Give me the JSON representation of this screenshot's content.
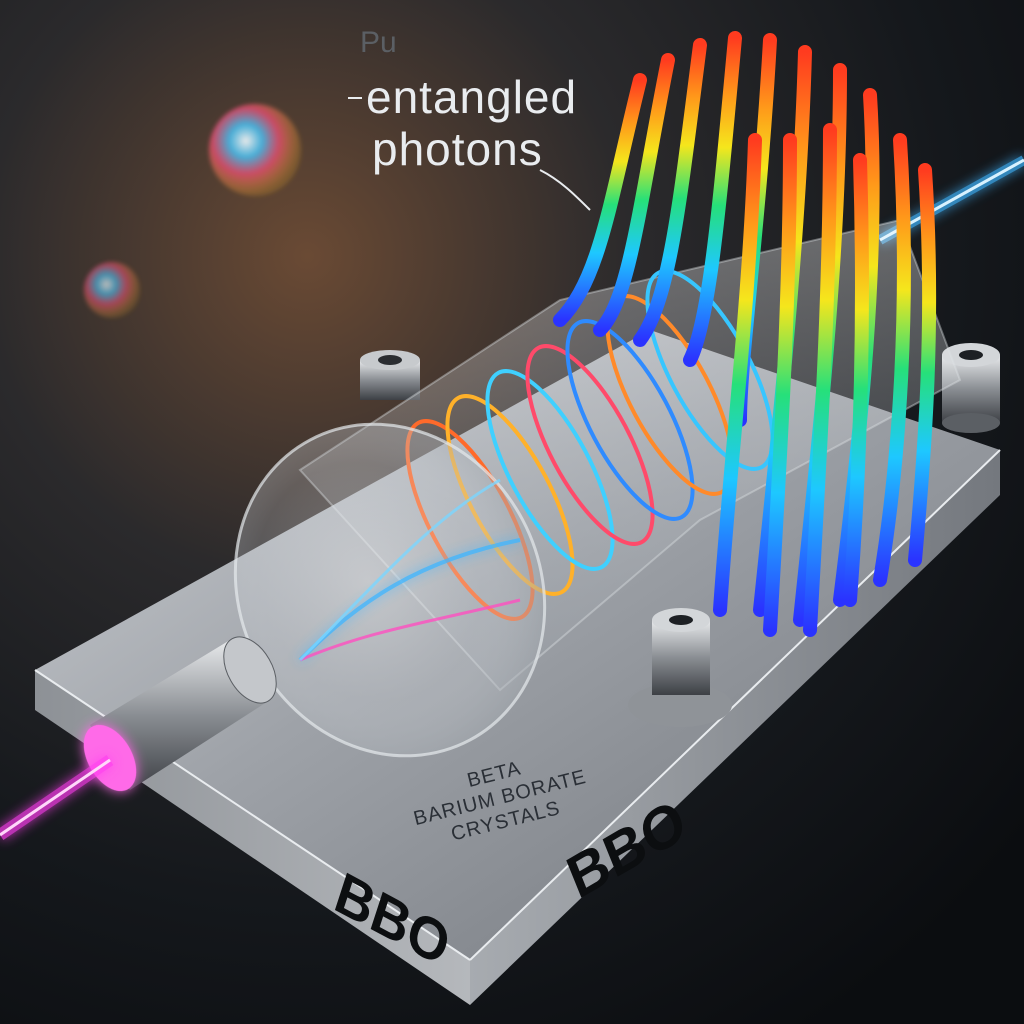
{
  "labels": {
    "pu": "Pu",
    "callout_line1": "entangled",
    "callout_line2": "photons"
  },
  "engraving": {
    "line1": "BETA",
    "line2": "BARIUM BORATE",
    "line3": "CRYSTALS"
  },
  "crystal_mark": {
    "front": "BBO",
    "side": "BBO"
  },
  "colors": {
    "background": "#101214",
    "laser_pink": "#ff3df0",
    "laser_blue": "#3fb6ff",
    "spectrum_red": "#ff3b1f",
    "spectrum_orange": "#ff9a1a",
    "spectrum_yellow": "#f5e61c",
    "spectrum_green": "#26e07a",
    "spectrum_cyan": "#1ec8ff",
    "spectrum_blue": "#2a33ff",
    "metal": "#b9bcc0"
  }
}
